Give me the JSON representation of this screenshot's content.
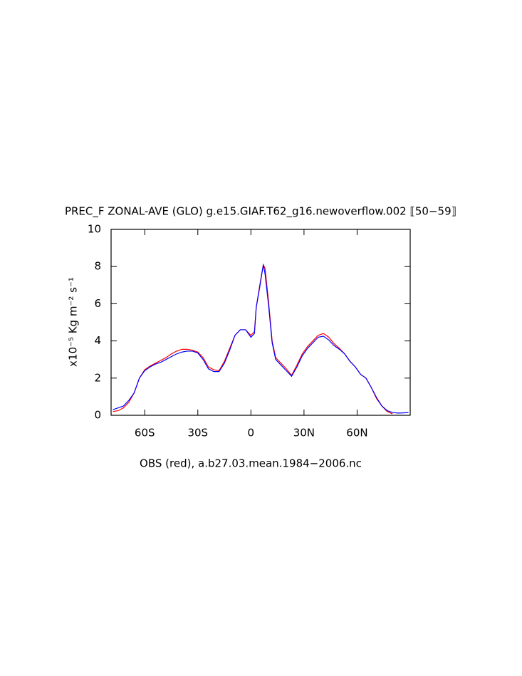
{
  "chart_data": {
    "type": "line",
    "title": "PREC_F ZONAL-AVE (GLO) g.e15.GIAF.T62_g16.newoverflow.002 ⟦50−59⟧",
    "x_label": "OBS (red), a.b27.03.mean.1984−2006.nc",
    "y_label": "x10⁻⁵ Kg m⁻² s⁻¹",
    "x": [
      -78,
      -75,
      -72,
      -69,
      -66,
      -63,
      -60,
      -57,
      -54,
      -51,
      -48,
      -45,
      -42,
      -39,
      -36,
      -33,
      -30,
      -27,
      -24,
      -21,
      -18,
      -15,
      -12,
      -9,
      -6,
      -3,
      0,
      2,
      3,
      5,
      7,
      8,
      10,
      12,
      14,
      17,
      20,
      23,
      26,
      29,
      32,
      35,
      38,
      41,
      44,
      47,
      50,
      53,
      56,
      59,
      62,
      65,
      68,
      71,
      74,
      77,
      80,
      83,
      86,
      89
    ],
    "series": [
      {
        "name": "OBS",
        "color": "#ff0000",
        "values": [
          0.2,
          0.25,
          0.4,
          0.7,
          1.2,
          2.0,
          2.45,
          2.65,
          2.8,
          2.95,
          3.1,
          3.3,
          3.45,
          3.55,
          3.55,
          3.5,
          3.4,
          3.1,
          2.6,
          2.45,
          2.4,
          2.9,
          3.6,
          4.3,
          4.6,
          4.6,
          4.3,
          4.5,
          5.8,
          7.0,
          8.1,
          7.9,
          6.1,
          4.0,
          3.1,
          2.8,
          2.5,
          2.15,
          2.7,
          3.3,
          3.7,
          4.0,
          4.3,
          4.4,
          4.2,
          3.85,
          3.6,
          3.3,
          2.9,
          2.6,
          2.2,
          2.0,
          1.5,
          0.9,
          0.5,
          0.2,
          0.08,
          null,
          null,
          null
        ]
      },
      {
        "name": "g.e15.GIAF.T62_g16.newoverflow.002",
        "color": "#0000ff",
        "values": [
          0.3,
          0.4,
          0.5,
          0.8,
          1.2,
          2.0,
          2.4,
          2.6,
          2.75,
          2.85,
          3.0,
          3.15,
          3.3,
          3.4,
          3.45,
          3.45,
          3.35,
          3.0,
          2.5,
          2.35,
          2.35,
          2.8,
          3.5,
          4.3,
          4.6,
          4.6,
          4.2,
          4.4,
          5.8,
          6.9,
          8.1,
          7.6,
          5.9,
          3.9,
          3.0,
          2.7,
          2.4,
          2.1,
          2.6,
          3.2,
          3.6,
          3.9,
          4.2,
          4.25,
          4.05,
          3.75,
          3.55,
          3.3,
          2.9,
          2.6,
          2.2,
          2.0,
          1.5,
          0.95,
          0.5,
          0.25,
          0.15,
          0.12,
          0.13,
          0.15
        ]
      }
    ],
    "xlim": [
      -79,
      90
    ],
    "xticks": [
      {
        "value": -60,
        "label": "60S"
      },
      {
        "value": -30,
        "label": "30S"
      },
      0,
      {
        "value": 30,
        "label": "30N"
      },
      {
        "value": 60,
        "label": "60N"
      }
    ],
    "ylim": [
      0,
      10
    ],
    "yticks": [
      0,
      2,
      4,
      6,
      8,
      10
    ]
  }
}
